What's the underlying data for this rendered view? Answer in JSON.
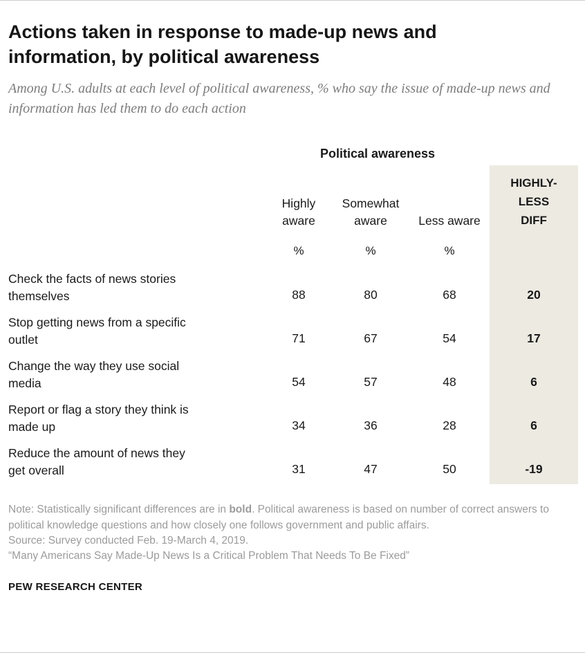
{
  "header": {
    "title": "Actions taken in response to made-up news and information, by political awareness",
    "subtitle": "Among U.S. adults at each level of political awareness, % who say the issue of made-up news and information has led them to do each action"
  },
  "table": {
    "group_header": "Political awareness",
    "columns": [
      "Highly aware",
      "Somewhat aware",
      "Less aware"
    ],
    "diff_header_lines": [
      "HIGHLY-",
      "LESS",
      "DIFF"
    ],
    "unit": "%",
    "rows": [
      {
        "lines": [
          "Check the facts of news stories",
          "themselves"
        ],
        "values": [
          "88",
          "80",
          "68"
        ],
        "diff": "20"
      },
      {
        "lines": [
          "Stop getting news from a specific",
          "outlet"
        ],
        "values": [
          "71",
          "67",
          "54"
        ],
        "diff": "17"
      },
      {
        "lines": [
          "Change the way they use social",
          "media"
        ],
        "values": [
          "54",
          "57",
          "48"
        ],
        "diff": "6"
      },
      {
        "lines": [
          "Report or flag a story they think is",
          "made up"
        ],
        "values": [
          "34",
          "36",
          "28"
        ],
        "diff": "6"
      },
      {
        "lines": [
          "Reduce the amount of news they",
          "get overall"
        ],
        "values": [
          "31",
          "47",
          "50"
        ],
        "diff": "-19"
      }
    ]
  },
  "chart_data": {
    "type": "table",
    "title": "Actions taken in response to made-up news and information, by political awareness",
    "subtitle": "Among U.S. adults at each level of political awareness, % who say the issue of made-up news and information has led them to do each action",
    "group_header": "Political awareness",
    "columns": [
      "Highly aware",
      "Somewhat aware",
      "Less aware",
      "HIGHLY-LESS DIFF"
    ],
    "unit": "%",
    "rows": [
      {
        "label": "Check the facts of news stories themselves",
        "highly_aware": 88,
        "somewhat_aware": 80,
        "less_aware": 68,
        "diff": 20
      },
      {
        "label": "Stop getting news from a specific outlet",
        "highly_aware": 71,
        "somewhat_aware": 67,
        "less_aware": 54,
        "diff": 17
      },
      {
        "label": "Change the way they use social media",
        "highly_aware": 54,
        "somewhat_aware": 57,
        "less_aware": 48,
        "diff": 6
      },
      {
        "label": "Report or flag a story they think is made up",
        "highly_aware": 34,
        "somewhat_aware": 36,
        "less_aware": 28,
        "diff": 6
      },
      {
        "label": "Reduce the amount of news they get overall",
        "highly_aware": 31,
        "somewhat_aware": 47,
        "less_aware": 50,
        "diff": -19
      }
    ]
  },
  "footer": {
    "note_prefix": "Note: Statistically significant differences are in ",
    "note_bold": "bold",
    "note_suffix": ". Political awareness is based on number of correct answers to political knowledge questions and how closely one follows government and public affairs.",
    "source": "Source: Survey conducted Feb. 19-March 4, 2019.",
    "quote": "“Many Americans Say Made-Up News Is a Critical Problem That Needs To Be Fixed”",
    "brand": "PEW RESEARCH CENTER"
  },
  "colors": {
    "diff_bg": "#edeae2"
  }
}
